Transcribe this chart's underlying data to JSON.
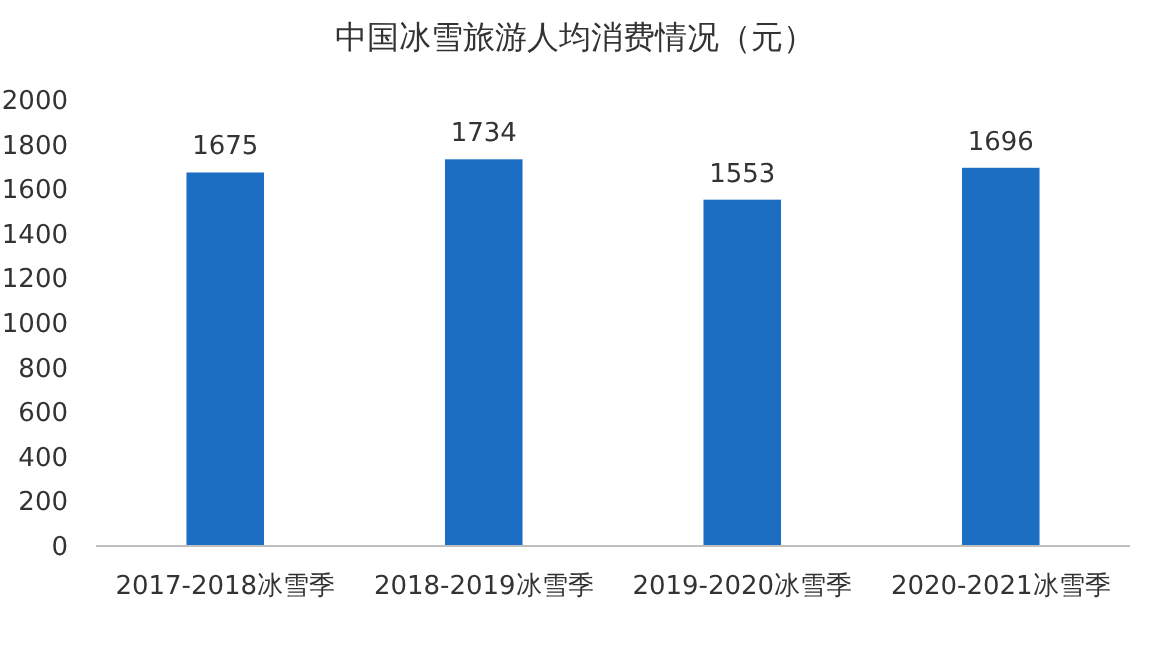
{
  "chart_data": {
    "type": "bar",
    "title": "中国冰雪旅游人均消费情况（元）",
    "categories": [
      "2017-2018冰雪季",
      "2018-2019冰雪季",
      "2019-2020冰雪季",
      "2020-2021冰雪季"
    ],
    "values": [
      1675,
      1734,
      1553,
      1696
    ],
    "color": "#1b6ec2",
    "ylim": [
      0,
      2000
    ],
    "yticks": [
      0,
      200,
      400,
      600,
      800,
      1000,
      1200,
      1400,
      1600,
      1800,
      2000
    ],
    "data_labels": true
  }
}
